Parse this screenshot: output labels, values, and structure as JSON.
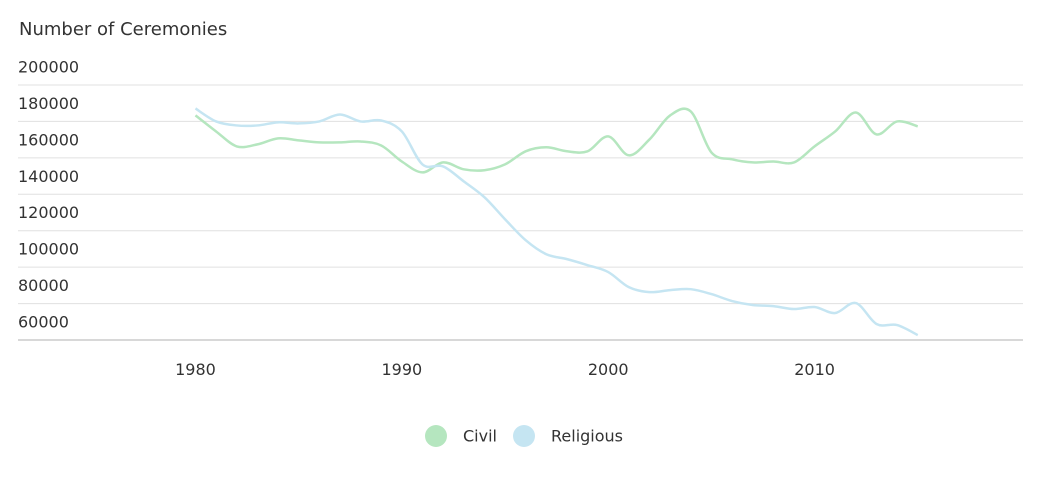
{
  "chart_data": {
    "type": "line",
    "y_title": "Number of Ceremonies",
    "x": [
      1980,
      1981,
      1982,
      1983,
      1984,
      1985,
      1986,
      1987,
      1988,
      1989,
      1990,
      1991,
      1992,
      1993,
      1994,
      1995,
      1996,
      1997,
      1998,
      1999,
      2000,
      2001,
      2002,
      2003,
      2004,
      2005,
      2006,
      2007,
      2008,
      2009,
      2010,
      2011,
      2012,
      2013,
      2014,
      2015
    ],
    "series": [
      {
        "name": "Civil",
        "color": "#b5e6bf",
        "values": [
          183300,
          174500,
          166300,
          167400,
          170700,
          169600,
          168500,
          168500,
          169000,
          166800,
          158000,
          152000,
          157500,
          153700,
          153200,
          156400,
          163600,
          165800,
          163600,
          163600,
          171800,
          161400,
          170100,
          183300,
          185500,
          163000,
          159200,
          157500,
          158000,
          157500,
          166300,
          174500,
          184900,
          172900,
          180000,
          177300
        ]
      },
      {
        "name": "Religious",
        "color": "#c5e5f2",
        "values": [
          187100,
          180000,
          177800,
          177800,
          179500,
          178900,
          180000,
          183800,
          180000,
          180500,
          174500,
          156400,
          155300,
          147100,
          138400,
          126300,
          114800,
          107100,
          104400,
          101100,
          97300,
          89000,
          86300,
          87400,
          87900,
          85200,
          81400,
          79200,
          78600,
          77000,
          78100,
          74800,
          80300,
          68800,
          68200,
          62700
        ]
      }
    ],
    "xlim": [
      1971.4,
      2020.1
    ],
    "xticks": [
      1980,
      1990,
      2000,
      2010
    ],
    "ylim": [
      60000,
      200000
    ],
    "yticks": [
      60000,
      80000,
      100000,
      120000,
      140000,
      160000,
      180000,
      200000
    ],
    "grid": true
  }
}
